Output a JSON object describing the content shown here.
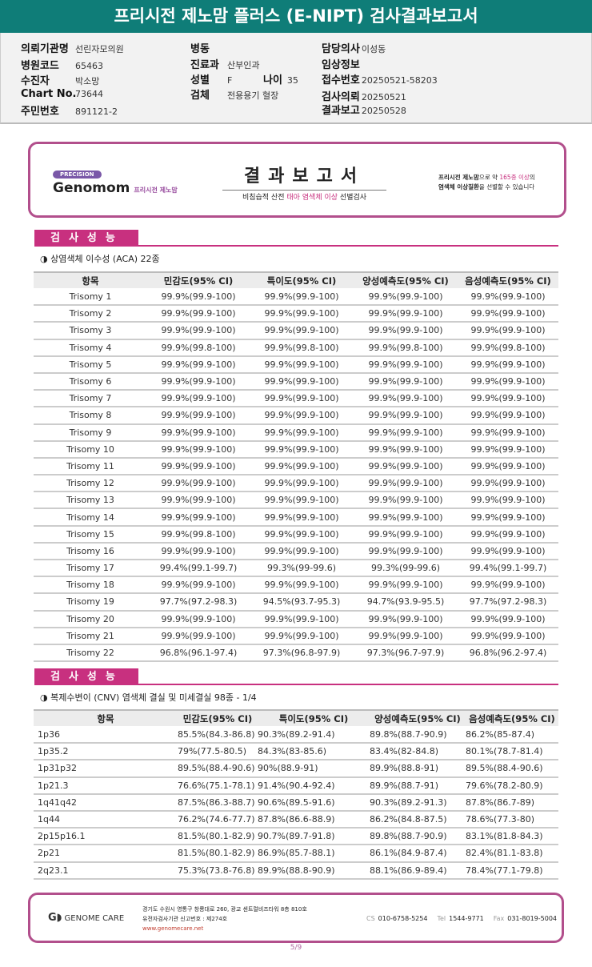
{
  "title": "프리시전 제노맘 플러스 (E-NIPT) 검사결과보고서",
  "info": {
    "institution": {
      "label": "의뢰기관명",
      "value": "선린자모의원"
    },
    "hospital_code": {
      "label": "병원코드",
      "value": "65463"
    },
    "patient": {
      "label": "수진자",
      "value": "박소망"
    },
    "chart_no": {
      "label": "Chart No.",
      "value": "73644"
    },
    "resident_no": {
      "label": "주민번호",
      "value": "891121-2"
    },
    "ward": {
      "label": "병동",
      "value": ""
    },
    "department": {
      "label": "진료과",
      "value": "산부인과"
    },
    "sex": {
      "label": "성별",
      "value": "F"
    },
    "age": {
      "label": "나이",
      "value": "35"
    },
    "specimen": {
      "label": "검체",
      "value": "전용용기 혈장"
    },
    "doctor": {
      "label": "담당의사",
      "value": "이성동"
    },
    "clinical": {
      "label": "임상정보",
      "value": ""
    },
    "accession": {
      "label": "접수번호",
      "value": "20250521-58203"
    },
    "request_date": {
      "label": "검사의뢰",
      "value": "20250521"
    },
    "report_date": {
      "label": "결과보고",
      "value": "20250528"
    }
  },
  "banner": {
    "precision": "PRECISION",
    "brand": "Genomom",
    "brand_sub": "프리시전 제노맘",
    "title": "결과보고서",
    "subtitle_a": "비침습적 산전 ",
    "subtitle_b": "태아 염색체 이상",
    "subtitle_c": " 선별검사",
    "right_a": "프리시전 제노맘",
    "right_b": "으로 약 ",
    "right_c": "165종 이상",
    "right_d": "의",
    "right_e": "염색체 이상질환",
    "right_f": "을 선별할 수 있습니다"
  },
  "section_label": "검사성능",
  "aca": {
    "subtitle": "◑ 상염색체 이수성 (ACA) 22종",
    "headers": [
      "항목",
      "민감도(95% CI)",
      "특이도(95% CI)",
      "양성예측도(95% CI)",
      "음성예측도(95% CI)"
    ],
    "rows": [
      [
        "Trisomy 1",
        "99.9%(99.9-100)",
        "99.9%(99.9-100)",
        "99.9%(99.9-100)",
        "99.9%(99.9-100)"
      ],
      [
        "Trisomy 2",
        "99.9%(99.9-100)",
        "99.9%(99.9-100)",
        "99.9%(99.9-100)",
        "99.9%(99.9-100)"
      ],
      [
        "Trisomy 3",
        "99.9%(99.9-100)",
        "99.9%(99.9-100)",
        "99.9%(99.9-100)",
        "99.9%(99.9-100)"
      ],
      [
        "Trisomy 4",
        "99.9%(99.8-100)",
        "99.9%(99.8-100)",
        "99.9%(99.8-100)",
        "99.9%(99.8-100)"
      ],
      [
        "Trisomy 5",
        "99.9%(99.9-100)",
        "99.9%(99.9-100)",
        "99.9%(99.9-100)",
        "99.9%(99.9-100)"
      ],
      [
        "Trisomy 6",
        "99.9%(99.9-100)",
        "99.9%(99.9-100)",
        "99.9%(99.9-100)",
        "99.9%(99.9-100)"
      ],
      [
        "Trisomy 7",
        "99.9%(99.9-100)",
        "99.9%(99.9-100)",
        "99.9%(99.9-100)",
        "99.9%(99.9-100)"
      ],
      [
        "Trisomy 8",
        "99.9%(99.9-100)",
        "99.9%(99.9-100)",
        "99.9%(99.9-100)",
        "99.9%(99.9-100)"
      ],
      [
        "Trisomy 9",
        "99.9%(99.9-100)",
        "99.9%(99.9-100)",
        "99.9%(99.9-100)",
        "99.9%(99.9-100)"
      ],
      [
        "Trisomy 10",
        "99.9%(99.9-100)",
        "99.9%(99.9-100)",
        "99.9%(99.9-100)",
        "99.9%(99.9-100)"
      ],
      [
        "Trisomy 11",
        "99.9%(99.9-100)",
        "99.9%(99.9-100)",
        "99.9%(99.9-100)",
        "99.9%(99.9-100)"
      ],
      [
        "Trisomy 12",
        "99.9%(99.9-100)",
        "99.9%(99.9-100)",
        "99.9%(99.9-100)",
        "99.9%(99.9-100)"
      ],
      [
        "Trisomy 13",
        "99.9%(99.9-100)",
        "99.9%(99.9-100)",
        "99.9%(99.9-100)",
        "99.9%(99.9-100)"
      ],
      [
        "Trisomy 14",
        "99.9%(99.9-100)",
        "99.9%(99.9-100)",
        "99.9%(99.9-100)",
        "99.9%(99.9-100)"
      ],
      [
        "Trisomy 15",
        "99.9%(99.8-100)",
        "99.9%(99.9-100)",
        "99.9%(99.9-100)",
        "99.9%(99.9-100)"
      ],
      [
        "Trisomy 16",
        "99.9%(99.9-100)",
        "99.9%(99.9-100)",
        "99.9%(99.9-100)",
        "99.9%(99.9-100)"
      ],
      [
        "Trisomy 17",
        "99.4%(99.1-99.7)",
        "99.3%(99-99.6)",
        "99.3%(99-99.6)",
        "99.4%(99.1-99.7)"
      ],
      [
        "Trisomy 18",
        "99.9%(99.9-100)",
        "99.9%(99.9-100)",
        "99.9%(99.9-100)",
        "99.9%(99.9-100)"
      ],
      [
        "Trisomy 19",
        "97.7%(97.2-98.3)",
        "94.5%(93.7-95.3)",
        "94.7%(93.9-95.5)",
        "97.7%(97.2-98.3)"
      ],
      [
        "Trisomy 20",
        "99.9%(99.9-100)",
        "99.9%(99.9-100)",
        "99.9%(99.9-100)",
        "99.9%(99.9-100)"
      ],
      [
        "Trisomy 21",
        "99.9%(99.9-100)",
        "99.9%(99.9-100)",
        "99.9%(99.9-100)",
        "99.9%(99.9-100)"
      ],
      [
        "Trisomy 22",
        "96.8%(96.1-97.4)",
        "97.3%(96.8-97.9)",
        "97.3%(96.7-97.9)",
        "96.8%(96.2-97.4)"
      ]
    ]
  },
  "cnv": {
    "subtitle": "◑ 복제수변이 (CNV) 염색체 결실 및 미세결실 98종 - 1/4",
    "headers": [
      "항목",
      "민감도(95% CI)",
      "특이도(95% CI)",
      "양성예측도(95% CI)",
      "음성예측도(95% CI)"
    ],
    "rows": [
      [
        "1p36",
        "85.5%(84.3-86.8)",
        "90.3%(89.2-91.4)",
        "89.8%(88.7-90.9)",
        "86.2%(85-87.4)"
      ],
      [
        "1p35.2",
        "79%(77.5-80.5)",
        "84.3%(83-85.6)",
        "83.4%(82-84.8)",
        "80.1%(78.7-81.4)"
      ],
      [
        "1p31p32",
        "89.5%(88.4-90.6)",
        "90%(88.9-91)",
        "89.9%(88.8-91)",
        "89.5%(88.4-90.6)"
      ],
      [
        "1p21.3",
        "76.6%(75.1-78.1)",
        "91.4%(90.4-92.4)",
        "89.9%(88.7-91)",
        "79.6%(78.2-80.9)"
      ],
      [
        "1q41q42",
        "87.5%(86.3-88.7)",
        "90.6%(89.5-91.6)",
        "90.3%(89.2-91.3)",
        "87.8%(86.7-89)"
      ],
      [
        "1q44",
        "76.2%(74.6-77.7)",
        "87.8%(86.6-88.9)",
        "86.2%(84.8-87.5)",
        "78.6%(77.3-80)"
      ],
      [
        "2p15p16.1",
        "81.5%(80.1-82.9)",
        "90.7%(89.7-91.8)",
        "89.8%(88.7-90.9)",
        "83.1%(81.8-84.3)"
      ],
      [
        "2p21",
        "81.5%(80.1-82.9)",
        "86.9%(85.7-88.1)",
        "86.1%(84.9-87.4)",
        "82.4%(81.1-83.8)"
      ],
      [
        "2q23.1",
        "75.3%(73.8-76.8)",
        "89.9%(88.8-90.9)",
        "88.1%(86.9-89.4)",
        "78.4%(77.1-79.8)"
      ]
    ]
  },
  "footer": {
    "company": "GENOME CARE",
    "address": "경기도 수원시 영통구 창룡대로 260, 광교 센트럴비즈타워 8층 810호",
    "license": "유전자검사기관 신고번호 : 제274호",
    "website": "www.genomecare.net",
    "cs_label": "CS",
    "cs": "010-6758-5254",
    "tel_label": "Tel",
    "tel": "1544-9771",
    "fax_label": "Fax",
    "fax": "031-8019-5004"
  },
  "page": "5/9",
  "colors": {
    "teal": "#0f7d78",
    "magenta": "#c8307f",
    "border": "#b24f8c"
  }
}
